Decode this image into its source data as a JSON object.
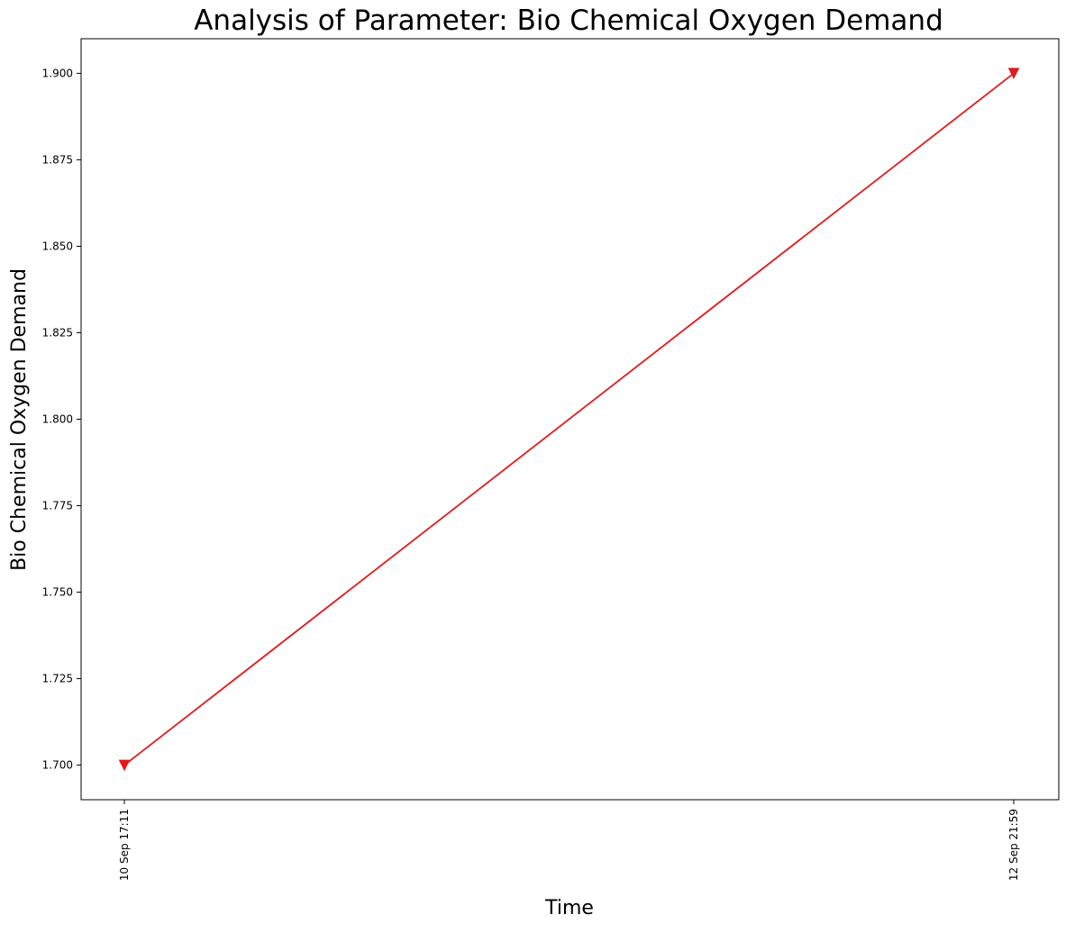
{
  "chart_data": {
    "type": "line",
    "title": "Analysis of Parameter: Bio Chemical Oxygen Demand",
    "xlabel": "Time",
    "ylabel": "Bio Chemical Oxygen Demand",
    "x": [
      "10 Sep 17:11",
      "12 Sep 21:59"
    ],
    "series": [
      {
        "values": [
          1.7,
          1.9
        ],
        "color": "#e31a1c",
        "marker": "triangle-down"
      }
    ],
    "y_ticks": [
      "1.700",
      "1.725",
      "1.750",
      "1.775",
      "1.800",
      "1.825",
      "1.850",
      "1.875",
      "1.900"
    ],
    "ylim": [
      1.69,
      1.91
    ],
    "grid": false,
    "legend": "none"
  }
}
